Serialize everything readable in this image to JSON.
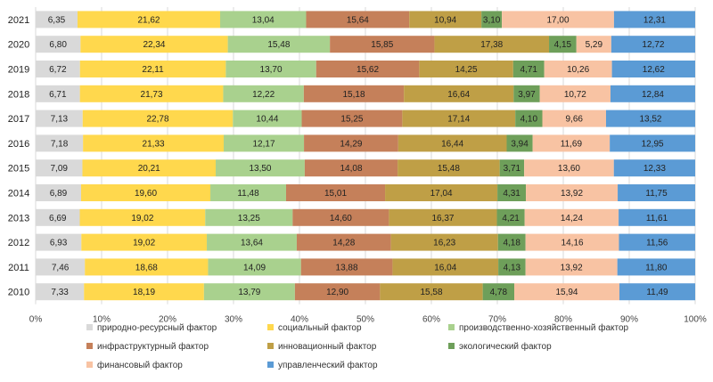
{
  "chart_data": {
    "type": "bar",
    "orientation": "horizontal",
    "stacked": true,
    "percent": true,
    "title": "",
    "categories": [
      "2021",
      "2020",
      "2019",
      "2018",
      "2017",
      "2016",
      "2015",
      "2014",
      "2013",
      "2012",
      "2011",
      "2010"
    ],
    "xlim": [
      0,
      100
    ],
    "xticks": [
      "0%",
      "10%",
      "20%",
      "30%",
      "40%",
      "50%",
      "60%",
      "70%",
      "80%",
      "90%",
      "100%"
    ],
    "grid": true,
    "legend_position": "bottom",
    "series": [
      {
        "name": "природно-ресурсный фактор",
        "color": "#d9d9d9",
        "values": [
          6.35,
          6.8,
          6.72,
          6.71,
          7.13,
          7.18,
          7.09,
          6.89,
          6.69,
          6.93,
          7.46,
          7.33
        ],
        "labels": [
          "6,35",
          "6,80",
          "6,72",
          "6,71",
          "7,13",
          "7,18",
          "7,09",
          "6,89",
          "6,69",
          "6,93",
          "7,46",
          "7,33"
        ]
      },
      {
        "name": "социальный фактор",
        "color": "#ffd84d",
        "values": [
          21.62,
          22.34,
          22.11,
          21.73,
          22.78,
          21.33,
          20.21,
          19.6,
          19.02,
          19.02,
          18.68,
          18.19
        ],
        "labels": [
          "21,62",
          "22,34",
          "22,11",
          "21,73",
          "22,78",
          "21,33",
          "20,21",
          "19,60",
          "19,02",
          "19,02",
          "18,68",
          "18,19"
        ]
      },
      {
        "name": "производственно-хозяйственный фактор",
        "color": "#a9d18e",
        "values": [
          13.04,
          15.48,
          13.7,
          12.22,
          10.44,
          12.17,
          13.5,
          11.48,
          13.25,
          13.64,
          14.09,
          13.79
        ],
        "labels": [
          "13,04",
          "15,48",
          "13,70",
          "12,22",
          "10,44",
          "12,17",
          "13,50",
          "11,48",
          "13,25",
          "13,64",
          "14,09",
          "13,79"
        ]
      },
      {
        "name": "инфраструктурный фактор",
        "color": "#c5805a",
        "values": [
          15.64,
          15.85,
          15.62,
          15.18,
          15.25,
          14.29,
          14.08,
          15.01,
          14.6,
          14.28,
          13.88,
          12.9
        ],
        "labels": [
          "15,64",
          "15,85",
          "15,62",
          "15,18",
          "15,25",
          "14,29",
          "14,08",
          "15,01",
          "14,60",
          "14,28",
          "13,88",
          "12,90"
        ]
      },
      {
        "name": "инновационный фактор",
        "color": "#bf9f46",
        "values": [
          10.94,
          17.38,
          14.25,
          16.64,
          17.14,
          16.44,
          15.48,
          17.04,
          16.37,
          16.23,
          16.04,
          15.58
        ],
        "labels": [
          "10,94",
          "17,38",
          "14,25",
          "16,64",
          "17,14",
          "16,44",
          "15,48",
          "17,04",
          "16,37",
          "16,23",
          "16,04",
          "15,58"
        ]
      },
      {
        "name": "экологический фактор",
        "color": "#6e9f5a",
        "values": [
          3.1,
          4.15,
          4.71,
          3.97,
          4.1,
          3.94,
          3.71,
          4.31,
          4.21,
          4.18,
          4.13,
          4.78
        ],
        "labels": [
          "3,10",
          "4,15",
          "4,71",
          "3,97",
          "4,10",
          "3,94",
          "3,71",
          "4,31",
          "4,21",
          "4,18",
          "4,13",
          "4,78"
        ]
      },
      {
        "name": "финансовый фактор",
        "color": "#f8c3a3",
        "values": [
          17.0,
          5.29,
          10.26,
          10.72,
          9.66,
          11.69,
          13.6,
          13.92,
          14.24,
          14.16,
          13.92,
          15.94
        ],
        "labels": [
          "17,00",
          "5,29",
          "10,26",
          "10,72",
          "9,66",
          "11,69",
          "13,60",
          "13,92",
          "14,24",
          "14,16",
          "13,92",
          "15,94"
        ]
      },
      {
        "name": "управленческий фактор",
        "color": "#5b9bd5",
        "values": [
          12.31,
          12.72,
          12.62,
          12.84,
          13.52,
          12.95,
          12.33,
          11.75,
          11.61,
          11.56,
          11.8,
          11.49
        ],
        "labels": [
          "12,31",
          "12,72",
          "12,62",
          "12,84",
          "13,52",
          "12,95",
          "12,33",
          "11,75",
          "11,61",
          "11,56",
          "11,80",
          "11,49"
        ]
      }
    ]
  }
}
